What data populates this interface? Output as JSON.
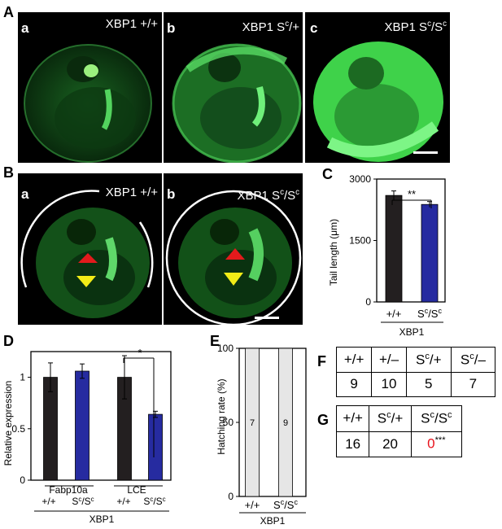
{
  "panels": {
    "A": {
      "label": "A",
      "images": [
        {
          "sub": "a",
          "genotype": "XBP1 +/+"
        },
        {
          "sub": "b",
          "genotype": "XBP1 S^c/+"
        },
        {
          "sub": "c",
          "genotype": "XBP1 S^c/S^c"
        }
      ]
    },
    "B": {
      "label": "B",
      "images": [
        {
          "sub": "a",
          "genotype": "XBP1 +/+"
        },
        {
          "sub": "b",
          "genotype": "XBP1 S^c/S^c"
        }
      ]
    },
    "F": {
      "label": "F",
      "headers": [
        "+/+",
        "+/–",
        "Sc/+",
        "Sc/–"
      ],
      "values": [
        "9",
        "10",
        "5",
        "7"
      ]
    },
    "G": {
      "label": "G",
      "headers": [
        "+/+",
        "Sc/+",
        "Sc/Sc"
      ],
      "values": [
        "16",
        "20",
        "0"
      ],
      "significance": "***"
    }
  },
  "colors": {
    "wildtype": "#231f20",
    "mutant": "#262ba0",
    "fluor": "#3fd24a",
    "highlight": "#e8101a",
    "arrow_yellow": "#f2ec17",
    "arrow_red": "#e31a1c",
    "hatch_bar": "#e6e6e6"
  },
  "chart_data": [
    {
      "panel": "C",
      "type": "bar",
      "categories": [
        "+/+",
        "Sc/Sc"
      ],
      "values": [
        2600,
        2380
      ],
      "errors": [
        110,
        70
      ],
      "ylabel": "Tail length (μm)",
      "ylim": [
        0,
        3000
      ],
      "yticks": [
        "0",
        "1500",
        "3000"
      ],
      "group_label": "XBP1",
      "significance": "**"
    },
    {
      "panel": "D",
      "type": "bar",
      "groups": [
        "Fabp10a",
        "LCE"
      ],
      "categories": [
        "+/+",
        "Sc/Sc",
        "+/+",
        "Sc/Sc"
      ],
      "values": [
        1.0,
        1.06,
        1.0,
        0.64
      ],
      "errors": [
        0.14,
        0.07,
        0.21,
        0.03
      ],
      "ylabel": "Relative expression",
      "ylim": [
        0,
        1.25
      ],
      "yticks": [
        "0",
        "0.5",
        "1"
      ],
      "group_label": "XBP1",
      "significance": "*"
    },
    {
      "panel": "E",
      "type": "bar",
      "categories": [
        "+/+",
        "Sc/Sc"
      ],
      "values": [
        100,
        100
      ],
      "n": [
        "7",
        "9"
      ],
      "ylabel": "Hatching rate (%)",
      "ylim": [
        0,
        100
      ],
      "yticks": [
        "0",
        "50",
        "100"
      ],
      "group_label": "XBP1"
    }
  ]
}
